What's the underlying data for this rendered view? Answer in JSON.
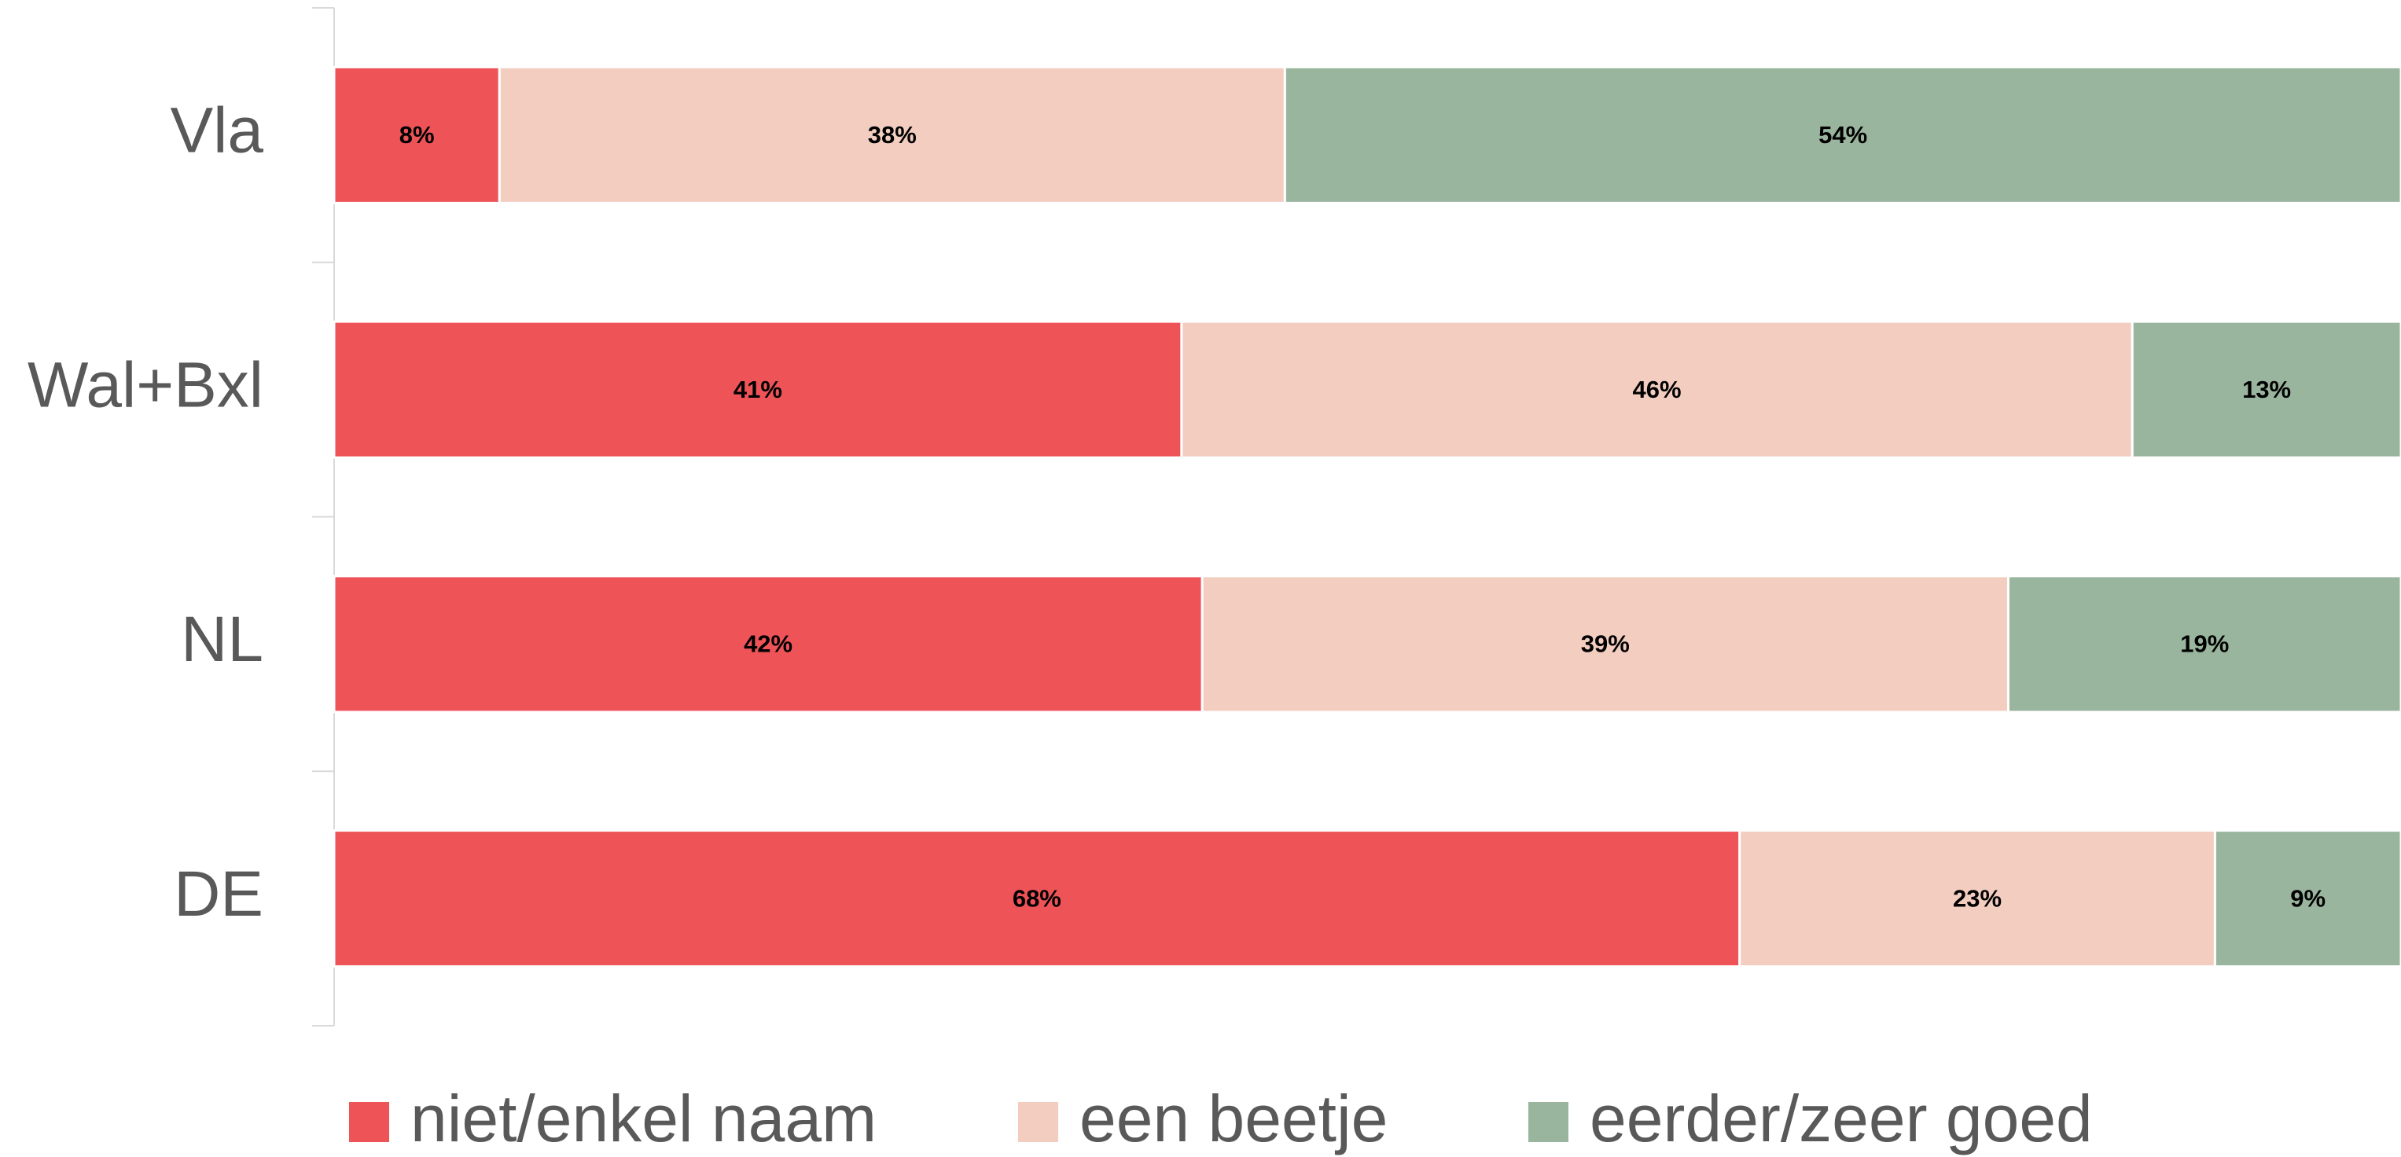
{
  "chart_data": {
    "type": "stacked-bar-horizontal",
    "categories": [
      "Vla",
      "Wal+Bxl",
      "NL",
      "DE"
    ],
    "series": [
      {
        "name": "niet/enkel naam",
        "color": "#ee5358",
        "values": [
          8,
          41,
          42,
          68
        ],
        "value_labels": [
          "8%",
          "41%",
          "42%",
          "68%"
        ]
      },
      {
        "name": "een beetje",
        "color": "#f2cdc0",
        "values": [
          38,
          46,
          39,
          23
        ],
        "value_labels": [
          "38%",
          "46%",
          "39%",
          "23%"
        ]
      },
      {
        "name": "eerder/zeer goed",
        "color": "#9ab59e",
        "values": [
          54,
          13,
          19,
          9
        ],
        "value_labels": [
          "54%",
          "13%",
          "19%",
          "9%"
        ]
      }
    ],
    "xlim": [
      0,
      100
    ],
    "legend": "bottom"
  }
}
